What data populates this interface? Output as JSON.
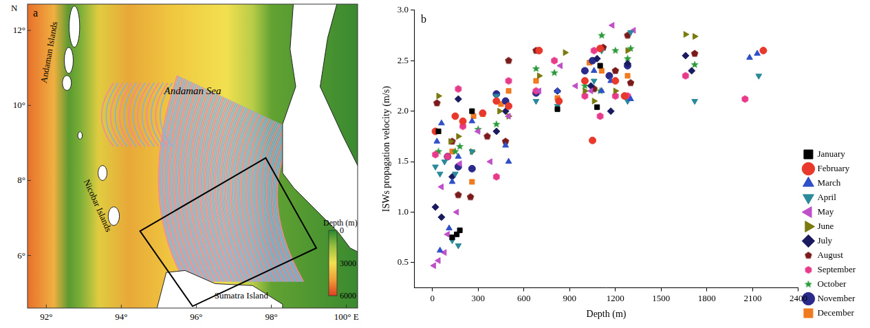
{
  "map": {
    "letter": "a",
    "north_label": "N",
    "lonlim": [
      91.5,
      100.3
    ],
    "latlim": [
      4.6,
      12.7
    ],
    "lon_ticks": [
      {
        "value": 92,
        "label": "92°"
      },
      {
        "value": 94,
        "label": "94°"
      },
      {
        "value": 96,
        "label": "96°"
      },
      {
        "value": 98,
        "label": "98°"
      },
      {
        "value": 100,
        "label": "100° E"
      }
    ],
    "lat_ticks": [
      {
        "value": 6,
        "label": "6°"
      },
      {
        "value": 8,
        "label": "8°"
      },
      {
        "value": 10,
        "label": "10°"
      },
      {
        "value": 12,
        "label": "12°"
      }
    ],
    "labels": [
      {
        "text": "Andaman Islands",
        "lon": 92.15,
        "lat": 11.4
      },
      {
        "text": "Andaman Sea",
        "lon": 95.9,
        "lat": 10.3
      },
      {
        "text": "Nicobar Islands",
        "lon": 93.3,
        "lat": 7.3
      },
      {
        "text": "Sumatra Island",
        "lon": 97.2,
        "lat": 4.85
      }
    ],
    "study_area": [
      [
        94.5,
        6.65
      ],
      [
        97.85,
        8.6
      ],
      [
        99.2,
        6.2
      ],
      [
        95.9,
        4.65
      ]
    ],
    "colorbar": {
      "title": "Depth (m)",
      "lim": [
        0,
        6000
      ],
      "ticks": [
        0,
        3000,
        6000
      ]
    }
  },
  "chart_data": {
    "type": "scatter",
    "annotations": [
      "b"
    ],
    "x_label": "Depth (m)",
    "y_label": "ISWs propagation velocity (m/s)",
    "xlim": [
      -120,
      2400
    ],
    "xticks": [
      0,
      300,
      600,
      900,
      1200,
      1500,
      1800,
      2100,
      2400
    ],
    "ylim": [
      0.25,
      3.0
    ],
    "yticks": [
      0.5,
      {
        "value": 1,
        "label": "1.0"
      },
      1.5,
      {
        "value": 2,
        "label": "2.0"
      },
      2.5,
      {
        "value": 3,
        "label": "3.0"
      }
    ],
    "grid": false,
    "legend": "right",
    "series": [
      {
        "name": "January",
        "color": "#000000",
        "marker": "square",
        "x": [
          40,
          130,
          160,
          180,
          260,
          820,
          1080,
          1100
        ],
        "values": [
          1.8,
          0.75,
          0.78,
          0.82,
          2.0,
          2.02,
          2.04,
          2.45
        ]
      },
      {
        "name": "February",
        "color": "#e8392c",
        "marker": "circle",
        "x": [
          20,
          150,
          200,
          330,
          420,
          500,
          700,
          830,
          1000,
          1050,
          1100,
          1200,
          1260,
          2170
        ],
        "values": [
          1.8,
          1.95,
          1.9,
          1.98,
          2.1,
          2.05,
          2.6,
          2.1,
          2.3,
          1.71,
          2.62,
          2.3,
          2.15,
          2.6
        ]
      },
      {
        "name": "March",
        "color": "#3050c8",
        "marker": "triangle",
        "x": [
          30,
          50,
          60,
          110,
          130,
          170,
          260,
          480,
          500,
          820,
          1060,
          1110,
          1170,
          1300,
          2080,
          2130
        ],
        "values": [
          1.7,
          0.62,
          1.88,
          0.84,
          1.3,
          1.55,
          1.9,
          1.66,
          1.5,
          2.2,
          2.4,
          2.2,
          2.3,
          2.12,
          2.53,
          2.57
        ]
      },
      {
        "name": "April",
        "color": "#2a8a9a",
        "marker": "triangle-down",
        "x": [
          20,
          50,
          80,
          130,
          150,
          170,
          260,
          420,
          680,
          820,
          1060,
          1110,
          1280,
          1300,
          1720,
          2140
        ],
        "values": [
          1.45,
          1.38,
          1.5,
          0.72,
          1.38,
          0.67,
          1.6,
          2.15,
          2.1,
          2.05,
          2.3,
          2.6,
          2.1,
          2.78,
          2.1,
          2.35
        ]
      },
      {
        "name": "May",
        "color": "#c050c8",
        "marker": "triangle-left",
        "x": [
          10,
          40,
          60,
          80,
          100,
          160,
          180,
          300,
          380,
          500,
          700,
          840,
          940,
          1040,
          1180,
          1320
        ],
        "values": [
          0.47,
          0.52,
          1.25,
          0.6,
          0.78,
          1.0,
          1.48,
          1.8,
          1.5,
          1.95,
          2.2,
          2.45,
          2.25,
          2.2,
          2.85,
          2.8
        ]
      },
      {
        "name": "June",
        "color": "#7a7a10",
        "marker": "triangle-right",
        "x": [
          40,
          120,
          170,
          260,
          440,
          500,
          700,
          870,
          1000,
          1060,
          1200,
          1280,
          1660,
          1720
        ],
        "values": [
          2.15,
          1.7,
          1.75,
          1.6,
          2.0,
          1.95,
          2.35,
          2.58,
          2.2,
          2.1,
          2.2,
          2.6,
          2.76,
          2.74
        ]
      },
      {
        "name": "July",
        "color": "#1a1a60",
        "marker": "diamond",
        "x": [
          20,
          60,
          130,
          170,
          420,
          480,
          820,
          1040,
          1080,
          1170,
          1280,
          1660,
          1700
        ],
        "values": [
          1.05,
          0.95,
          1.35,
          2.12,
          1.8,
          2.0,
          2.2,
          2.25,
          2.52,
          2.0,
          2.47,
          2.55,
          2.4
        ]
      },
      {
        "name": "August",
        "color": "#7a1a1a",
        "marker": "pentagon",
        "x": [
          30,
          130,
          170,
          250,
          360,
          480,
          500,
          680,
          1060,
          1120,
          1200,
          1280,
          1300,
          1720
        ],
        "values": [
          2.08,
          1.7,
          1.17,
          1.15,
          1.75,
          1.7,
          2.5,
          2.6,
          2.22,
          2.63,
          2.4,
          2.75,
          2.28,
          2.57
        ]
      },
      {
        "name": "September",
        "color": "#e83a8a",
        "marker": "hexagon",
        "x": [
          20,
          100,
          170,
          200,
          420,
          500,
          680,
          800,
          1000,
          1060,
          1100,
          1200,
          1280,
          1660,
          2050
        ],
        "values": [
          1.57,
          1.55,
          2.22,
          1.85,
          1.35,
          2.3,
          2.2,
          2.5,
          2.15,
          2.6,
          1.95,
          2.15,
          2.15,
          2.35,
          2.12
        ]
      },
      {
        "name": "October",
        "color": "#2a9a3a",
        "marker": "star",
        "x": [
          40,
          150,
          180,
          300,
          420,
          680,
          800,
          1000,
          1100,
          1110,
          1200,
          1280,
          1300,
          1720
        ],
        "values": [
          1.6,
          1.6,
          1.65,
          1.82,
          1.87,
          2.42,
          2.38,
          2.25,
          2.2,
          2.75,
          2.6,
          2.52,
          2.62,
          2.46
        ]
      },
      {
        "name": "November",
        "color": "#2a2a8a",
        "marker": "circle",
        "x": [
          100,
          170,
          260,
          420,
          480,
          680,
          1000,
          1050,
          1160,
          1280
        ],
        "values": [
          1.55,
          1.45,
          1.43,
          2.17,
          2.1,
          2.18,
          2.4,
          2.5,
          2.35,
          2.45
        ]
      },
      {
        "name": "December",
        "color": "#f07a20",
        "marker": "square",
        "x": [
          130,
          260,
          270,
          330,
          450,
          500,
          680,
          820,
          1030,
          1110,
          1280
        ],
        "values": [
          1.6,
          1.3,
          1.95,
          1.97,
          2.07,
          2.2,
          2.3,
          2.13,
          2.48,
          2.4,
          2.35
        ]
      }
    ]
  }
}
